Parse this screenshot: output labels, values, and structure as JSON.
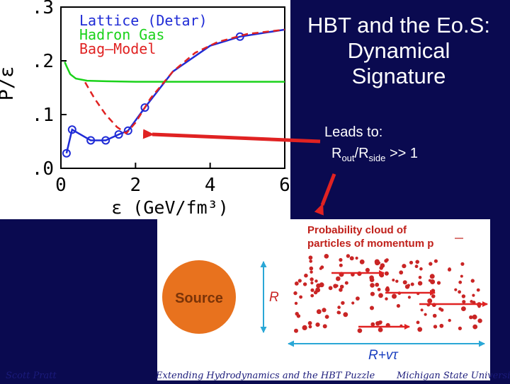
{
  "slide": {
    "title_lines": [
      "HBT and the Eo.S:",
      "Dynamical",
      "Signature"
    ],
    "leads_to": "Leads to:",
    "ratio_r": "R",
    "ratio_out": "out",
    "ratio_slash": "/R",
    "ratio_side": "side",
    "ratio_rest": " >> 1",
    "footer_left": "Scott Pratt",
    "footer_center": "Extending Hydrodynamics and the HBT Puzzle",
    "footer_right": "Michigan State University"
  },
  "chart_data": {
    "type": "line",
    "xlabel": "ε (GeV/fm³)",
    "ylabel": "P/ε",
    "xlim": [
      0,
      6
    ],
    "ylim": [
      0,
      0.3
    ],
    "x_ticks": [
      0,
      2,
      4,
      6
    ],
    "x_tick_labels": [
      "0",
      "2",
      "4",
      "6"
    ],
    "y_ticks": [
      0,
      0.1,
      0.2,
      0.3
    ],
    "y_tick_labels": [
      ".0",
      ".1",
      ".2",
      ".3"
    ],
    "legend": {
      "placement": "top-left",
      "entries": [
        "Lattice (Detar)",
        "Hadron Gas",
        "Bag—Model"
      ]
    },
    "series": [
      {
        "name": "Lattice (Detar)",
        "color": "#1f2bd6",
        "style": "solid",
        "markers": true,
        "points": [
          [
            0.15,
            0.028
          ],
          [
            0.3,
            0.072
          ],
          [
            0.8,
            0.052
          ],
          [
            1.2,
            0.052
          ],
          [
            1.55,
            0.063
          ],
          [
            1.8,
            0.07
          ],
          [
            2.25,
            0.113
          ],
          [
            3.0,
            0.18
          ],
          [
            4.0,
            0.228
          ],
          [
            4.8,
            0.245
          ],
          [
            6.0,
            0.258
          ]
        ],
        "marked": [
          [
            0.15,
            0.028
          ],
          [
            0.3,
            0.072
          ],
          [
            0.8,
            0.052
          ],
          [
            1.2,
            0.052
          ],
          [
            1.55,
            0.063
          ],
          [
            1.8,
            0.07
          ],
          [
            2.25,
            0.113
          ],
          [
            4.8,
            0.245
          ]
        ]
      },
      {
        "name": "Hadron Gas",
        "color": "#1ad21a",
        "style": "solid",
        "markers": false,
        "points": [
          [
            0.1,
            0.198
          ],
          [
            0.15,
            0.19
          ],
          [
            0.25,
            0.175
          ],
          [
            0.4,
            0.167
          ],
          [
            0.7,
            0.163
          ],
          [
            1.2,
            0.162
          ],
          [
            2.0,
            0.161
          ],
          [
            4.0,
            0.161
          ],
          [
            6.0,
            0.161
          ]
        ]
      },
      {
        "name": "Bag—Model",
        "color": "#e02222",
        "style": "dashed",
        "markers": false,
        "points": [
          [
            0.65,
            0.16
          ],
          [
            0.9,
            0.13
          ],
          [
            1.2,
            0.1
          ],
          [
            1.5,
            0.077
          ],
          [
            1.75,
            0.065
          ],
          [
            2.0,
            0.085
          ],
          [
            2.4,
            0.13
          ],
          [
            3.0,
            0.18
          ],
          [
            3.6,
            0.215
          ],
          [
            4.2,
            0.235
          ],
          [
            5.0,
            0.25
          ],
          [
            6.0,
            0.258
          ]
        ]
      }
    ]
  },
  "diagram": {
    "heading_line1": "Probability cloud of",
    "heading_line2": "particles of momentum p",
    "source_label": "Source",
    "radius_label": "R",
    "cloud_label": "R+vτ"
  },
  "colors": {
    "background": "#0a0a50",
    "arrow": "#e02222",
    "source_fill": "#e8721e",
    "dim_arrow": "#2aa7d6",
    "dot": "#c92525",
    "heading": "#c0201a"
  }
}
